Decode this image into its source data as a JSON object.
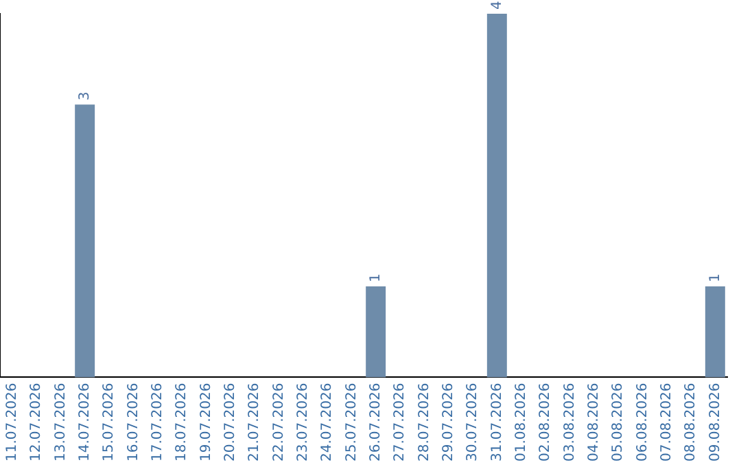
{
  "chart_data": {
    "type": "bar",
    "categories": [
      "11.07.2026",
      "12.07.2026",
      "13.07.2026",
      "14.07.2026",
      "15.07.2026",
      "16.07.2026",
      "17.07.2026",
      "18.07.2026",
      "19.07.2026",
      "20.07.2026",
      "21.07.2026",
      "22.07.2026",
      "23.07.2026",
      "24.07.2026",
      "25.07.2026",
      "26.07.2026",
      "27.07.2026",
      "28.07.2026",
      "29.07.2026",
      "30.07.2026",
      "31.07.2026",
      "01.08.2026",
      "02.08.2026",
      "03.08.2026",
      "04.08.2026",
      "05.08.2026",
      "06.08.2026",
      "07.08.2026",
      "08.08.2026",
      "09.08.2026"
    ],
    "values": [
      0,
      0,
      0,
      3,
      0,
      0,
      0,
      0,
      0,
      0,
      0,
      0,
      0,
      0,
      0,
      1,
      0,
      0,
      0,
      0,
      4,
      0,
      0,
      0,
      0,
      0,
      0,
      0,
      0,
      1
    ],
    "value_labels": [
      null,
      null,
      null,
      "3",
      null,
      null,
      null,
      null,
      null,
      null,
      null,
      null,
      null,
      null,
      null,
      "1",
      null,
      null,
      null,
      null,
      "4",
      null,
      null,
      null,
      null,
      null,
      null,
      null,
      null,
      "1"
    ],
    "color": "#6e8caa",
    "ylim": [
      0,
      4
    ],
    "tick_labels": "x",
    "grid": false,
    "legend": false
  }
}
